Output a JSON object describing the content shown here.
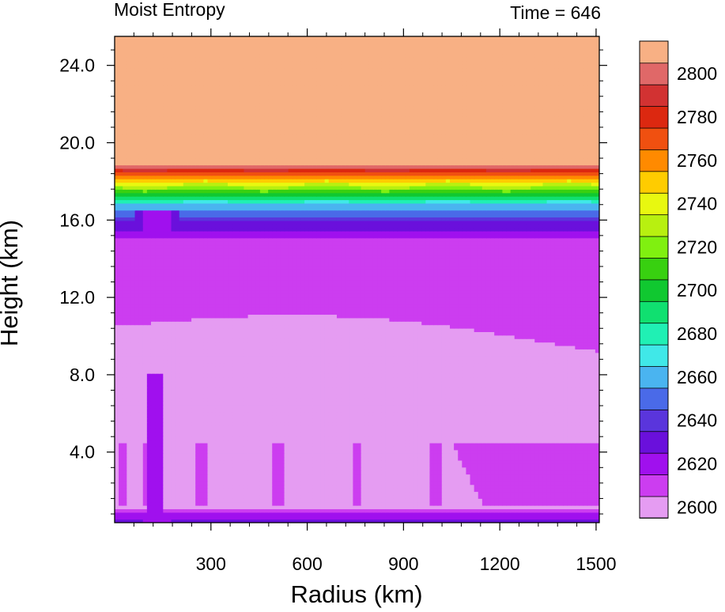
{
  "chart_data": {
    "type": "heatmap",
    "title_left": "Moist Entropy",
    "title_right": "Time = 646",
    "xlabel": "Radius (km)",
    "ylabel": "Height (km)",
    "xlim": [
      0,
      1510
    ],
    "ylim": [
      0.35,
      25.5
    ],
    "xticks": [
      300,
      600,
      900,
      1200,
      1500
    ],
    "xtick_labels": [
      "300",
      "600",
      "900",
      "1200",
      "1500"
    ],
    "yticks": [
      4,
      8,
      12,
      16,
      20,
      24
    ],
    "ytick_labels": [
      "4.0",
      "8.0",
      "12.0",
      "16.0",
      "20.0",
      "24.0"
    ],
    "colorbar": {
      "colors": [
        "#e59cf2",
        "#cc3df0",
        "#a010ee",
        "#6a10dc",
        "#5a35dc",
        "#4a6ae8",
        "#4ab4f0",
        "#40e8e8",
        "#20f0b4",
        "#10e070",
        "#10c830",
        "#38d010",
        "#80f010",
        "#b8f010",
        "#e8f810",
        "#ffcc00",
        "#ff8a00",
        "#f05010",
        "#dc2810",
        "#d23232",
        "#e06868",
        "#f8b084"
      ],
      "labels": [
        "2600",
        "2620",
        "2640",
        "2660",
        "2680",
        "2700",
        "2720",
        "2740",
        "2760",
        "2780",
        "2800"
      ],
      "label_levels": [
        2600,
        2620,
        2640,
        2660,
        2680,
        2700,
        2720,
        2740,
        2760,
        2780,
        2800
      ]
    },
    "approx_field": {
      "profile_height_km": [
        0.35,
        0.8,
        1.2,
        2.0,
        4.5,
        9.5,
        11.5,
        12.0,
        15.0,
        15.5,
        16.0,
        16.4,
        16.8,
        17.1,
        17.4,
        17.7,
        18.0,
        18.3,
        18.6,
        18.8
      ],
      "profile_value": [
        2638,
        2622,
        2605,
        2600,
        2605,
        2600,
        2605,
        2610,
        2620,
        2630,
        2642,
        2655,
        2670,
        2690,
        2710,
        2730,
        2750,
        2770,
        2790,
        2810
      ],
      "inner_core_radius_km": [
        60,
        200
      ],
      "tropopause_height_km": 18.8
    }
  }
}
